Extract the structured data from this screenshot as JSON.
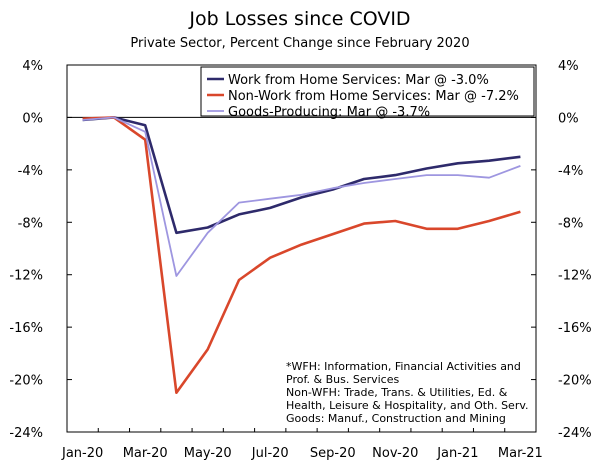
{
  "chart_data": {
    "type": "line",
    "title": "Job Losses since COVID",
    "subtitle": "Private Sector, Percent Change since February 2020",
    "ylim": [
      -24,
      4
    ],
    "y_ticks": [
      "4%",
      "0%",
      "-4%",
      "-8%",
      "-12%",
      "-16%",
      "-20%",
      "-24%"
    ],
    "y_tick_values": [
      4,
      0,
      -4,
      -8,
      -12,
      -16,
      -20,
      -24
    ],
    "x_ticks": [
      "Jan-20",
      "Mar-20",
      "May-20",
      "Jul-20",
      "Sep-20",
      "Nov-20",
      "Jan-21",
      "Mar-21"
    ],
    "x_tick_indices": [
      0,
      2,
      4,
      6,
      8,
      10,
      12,
      14
    ],
    "x_count": 15,
    "series": [
      {
        "name": "Work from Home Services",
        "legend": "Work from Home Services: Mar @ -3.0%",
        "color": "#2e2a6b",
        "values": [
          -0.2,
          0.0,
          -0.6,
          -8.8,
          -8.4,
          -7.4,
          -6.9,
          -6.1,
          -5.5,
          -4.7,
          -4.4,
          -3.9,
          -3.5,
          -3.3,
          -3.0
        ]
      },
      {
        "name": "Non-Work from Home Services",
        "legend": "Non-Work from Home Services: Mar @ -7.2%",
        "color": "#d9472b",
        "values": [
          -0.1,
          0.0,
          -1.7,
          -21.0,
          -17.7,
          -12.4,
          -10.7,
          -9.7,
          -8.9,
          -8.1,
          -7.9,
          -8.5,
          -8.5,
          -7.9,
          -7.2
        ]
      },
      {
        "name": "Goods-Producing",
        "legend": "Goods-Producing: Mar @ -3.7%",
        "color": "#9e96e0",
        "values": [
          -0.2,
          0.0,
          -1.1,
          -12.1,
          -8.8,
          -6.5,
          -6.2,
          -5.9,
          -5.4,
          -5.0,
          -4.7,
          -4.4,
          -4.4,
          -4.6,
          -3.7
        ]
      }
    ],
    "notes": [
      "*WFH: Information, Financial Activities and",
      "Prof. & Bus. Services",
      "Non-WFH: Trade, Trans. & Utilities, Ed. &",
      "Health, Leisure & Hospitality, and Oth. Serv.",
      "Goods: Manuf., Construction and Mining"
    ]
  }
}
